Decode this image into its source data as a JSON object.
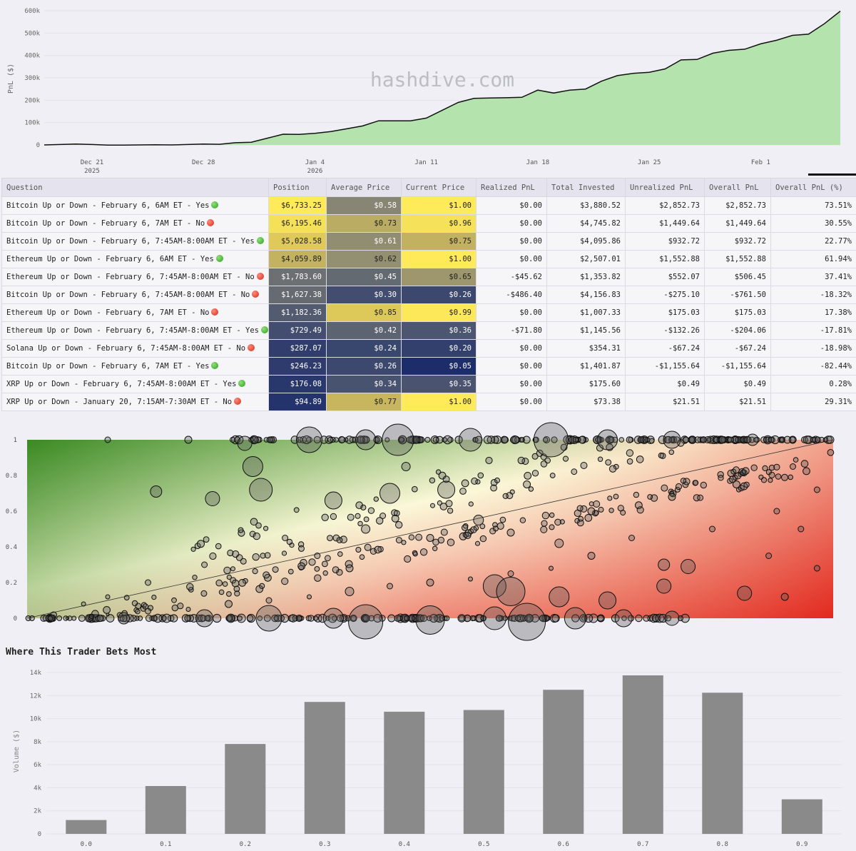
{
  "watermark": "hashdive.com",
  "pnl_chart": {
    "ylabel": "PnL ($)",
    "y_ticks": [
      "0",
      "100k",
      "200k",
      "300k",
      "400k",
      "500k",
      "600k"
    ],
    "x_ticks": [
      {
        "label": "Dec 21",
        "sub": "2025"
      },
      {
        "label": "Dec 28",
        "sub": ""
      },
      {
        "label": "Jan 4",
        "sub": "2026"
      },
      {
        "label": "Jan 11",
        "sub": ""
      },
      {
        "label": "Jan 18",
        "sub": ""
      },
      {
        "label": "Jan 25",
        "sub": ""
      },
      {
        "label": "Feb 1",
        "sub": ""
      }
    ],
    "colors": {
      "fill": "#b5e3ae",
      "line": "#111111"
    }
  },
  "chart_data": [
    {
      "type": "area",
      "ylabel": "PnL ($)",
      "ylim": [
        0,
        600000
      ],
      "x": [
        "2025-12-18",
        "2025-12-19",
        "2025-12-20",
        "2025-12-21",
        "2025-12-22",
        "2025-12-23",
        "2025-12-24",
        "2025-12-25",
        "2025-12-26",
        "2025-12-27",
        "2025-12-28",
        "2025-12-29",
        "2025-12-30",
        "2025-12-31",
        "2026-01-01",
        "2026-01-02",
        "2026-01-03",
        "2026-01-04",
        "2026-01-05",
        "2026-01-06",
        "2026-01-07",
        "2026-01-08",
        "2026-01-09",
        "2026-01-10",
        "2026-01-11",
        "2026-01-12",
        "2026-01-13",
        "2026-01-14",
        "2026-01-15",
        "2026-01-16",
        "2026-01-17",
        "2026-01-18",
        "2026-01-19",
        "2026-01-20",
        "2026-01-21",
        "2026-01-22",
        "2026-01-23",
        "2026-01-24",
        "2026-01-25",
        "2026-01-26",
        "2026-01-27",
        "2026-01-28",
        "2026-01-29",
        "2026-01-30",
        "2026-01-31",
        "2026-02-01",
        "2026-02-02",
        "2026-02-03",
        "2026-02-04",
        "2026-02-05",
        "2026-02-06"
      ],
      "series": [
        {
          "values": [
            0,
            2000,
            4000,
            2000,
            -1000,
            -1000,
            0,
            1000,
            0,
            2000,
            4000,
            3000,
            10000,
            12000,
            30000,
            48000,
            47000,
            52000,
            60000,
            72000,
            85000,
            108000,
            108000,
            108000,
            120000,
            155000,
            190000,
            208000,
            210000,
            211000,
            213000,
            245000,
            232000,
            245000,
            250000,
            285000,
            310000,
            320000,
            325000,
            340000,
            380000,
            382000,
            410000,
            423000,
            428000,
            452000,
            468000,
            490000,
            495000,
            542000,
            598000
          ]
        }
      ]
    },
    {
      "type": "table",
      "columns": [
        "Question",
        "Position",
        "Average Price",
        "Current Price",
        "Realized PnL",
        "Total Invested",
        "Unrealized PnL",
        "Overall PnL",
        "Overall PnL (%)"
      ],
      "rows": [
        {
          "question": "Bitcoin Up or Down - February 6, 6AM ET - Yes",
          "outcome": "yes",
          "position": "$6,733.25",
          "avg_price": "$0.58",
          "current_price": "$1.00",
          "realized": "$0.00",
          "invested": "$3,880.52",
          "unrealized": "$2,852.73",
          "overall": "$2,852.73",
          "overall_pct": "73.51%",
          "position_value": 6733.25,
          "avg_value": 0.58,
          "cur_value": 1.0
        },
        {
          "question": "Bitcoin Up or Down - February 6, 7AM ET - No",
          "outcome": "no",
          "position": "$6,195.46",
          "avg_price": "$0.73",
          "current_price": "$0.96",
          "realized": "$0.00",
          "invested": "$4,745.82",
          "unrealized": "$1,449.64",
          "overall": "$1,449.64",
          "overall_pct": "30.55%",
          "position_value": 6195.46,
          "avg_value": 0.73,
          "cur_value": 0.96
        },
        {
          "question": "Bitcoin Up or Down - February 6, 7:45AM-8:00AM ET - Yes",
          "outcome": "yes",
          "position": "$5,028.58",
          "avg_price": "$0.61",
          "current_price": "$0.75",
          "realized": "$0.00",
          "invested": "$4,095.86",
          "unrealized": "$932.72",
          "overall": "$932.72",
          "overall_pct": "22.77%",
          "position_value": 5028.58,
          "avg_value": 0.61,
          "cur_value": 0.75
        },
        {
          "question": "Ethereum Up or Down - February 6, 6AM ET - Yes",
          "outcome": "yes",
          "position": "$4,059.89",
          "avg_price": "$0.62",
          "current_price": "$1.00",
          "realized": "$0.00",
          "invested": "$2,507.01",
          "unrealized": "$1,552.88",
          "overall": "$1,552.88",
          "overall_pct": "61.94%",
          "position_value": 4059.89,
          "avg_value": 0.62,
          "cur_value": 1.0
        },
        {
          "question": "Ethereum Up or Down - February 6, 7:45AM-8:00AM ET - No",
          "outcome": "no",
          "position": "$1,783.60",
          "avg_price": "$0.45",
          "current_price": "$0.65",
          "realized": "-$45.62",
          "invested": "$1,353.82",
          "unrealized": "$552.07",
          "overall": "$506.45",
          "overall_pct": "37.41%",
          "position_value": 1783.6,
          "avg_value": 0.45,
          "cur_value": 0.65
        },
        {
          "question": "Bitcoin Up or Down - February 6, 7:45AM-8:00AM ET - No",
          "outcome": "no",
          "position": "$1,627.38",
          "avg_price": "$0.30",
          "current_price": "$0.26",
          "realized": "-$486.40",
          "invested": "$4,156.83",
          "unrealized": "-$275.10",
          "overall": "-$761.50",
          "overall_pct": "-18.32%",
          "position_value": 1627.38,
          "avg_value": 0.3,
          "cur_value": 0.26
        },
        {
          "question": "Ethereum Up or Down - February 6, 7AM ET - No",
          "outcome": "no",
          "position": "$1,182.36",
          "avg_price": "$0.85",
          "current_price": "$0.99",
          "realized": "$0.00",
          "invested": "$1,007.33",
          "unrealized": "$175.03",
          "overall": "$175.03",
          "overall_pct": "17.38%",
          "position_value": 1182.36,
          "avg_value": 0.85,
          "cur_value": 0.99
        },
        {
          "question": "Ethereum Up or Down - February 6, 7:45AM-8:00AM ET - Yes",
          "outcome": "yes",
          "position": "$729.49",
          "avg_price": "$0.42",
          "current_price": "$0.36",
          "realized": "-$71.80",
          "invested": "$1,145.56",
          "unrealized": "-$132.26",
          "overall": "-$204.06",
          "overall_pct": "-17.81%",
          "position_value": 729.49,
          "avg_value": 0.42,
          "cur_value": 0.36
        },
        {
          "question": "Solana Up or Down - February 6, 7:45AM-8:00AM ET - No",
          "outcome": "no",
          "position": "$287.07",
          "avg_price": "$0.24",
          "current_price": "$0.20",
          "realized": "$0.00",
          "invested": "$354.31",
          "unrealized": "-$67.24",
          "overall": "-$67.24",
          "overall_pct": "-18.98%",
          "position_value": 287.07,
          "avg_value": 0.24,
          "cur_value": 0.2
        },
        {
          "question": "Bitcoin Up or Down - February 6, 7AM ET - Yes",
          "outcome": "yes",
          "position": "$246.23",
          "avg_price": "$0.26",
          "current_price": "$0.05",
          "realized": "$0.00",
          "invested": "$1,401.87",
          "unrealized": "-$1,155.64",
          "overall": "-$1,155.64",
          "overall_pct": "-82.44%",
          "position_value": 246.23,
          "avg_value": 0.26,
          "cur_value": 0.05
        },
        {
          "question": "XRP Up or Down - February 6, 7:45AM-8:00AM ET - Yes",
          "outcome": "yes",
          "position": "$176.08",
          "avg_price": "$0.34",
          "current_price": "$0.35",
          "realized": "$0.00",
          "invested": "$175.60",
          "unrealized": "$0.49",
          "overall": "$0.49",
          "overall_pct": "0.28%",
          "position_value": 176.08,
          "avg_value": 0.34,
          "cur_value": 0.35
        },
        {
          "question": "XRP Up or Down - January 20, 7:15AM-7:30AM ET - No",
          "outcome": "no",
          "position": "$94.89",
          "avg_price": "$0.77",
          "current_price": "$1.00",
          "realized": "$0.00",
          "invested": "$73.38",
          "unrealized": "$21.51",
          "overall": "$21.51",
          "overall_pct": "29.31%",
          "position_value": 94.89,
          "avg_value": 0.77,
          "cur_value": 1.0
        }
      ]
    },
    {
      "type": "scatter",
      "xlim": [
        0,
        1
      ],
      "ylim": [
        0,
        1
      ],
      "y_ticks": [
        "0",
        "0.2",
        "0.4",
        "0.6",
        "0.8",
        "1"
      ],
      "diagonal": true,
      "gradient_colors": {
        "green": "#3a8a22",
        "cream": "#fbf8d8",
        "red": "#e2291e"
      },
      "points": [
        {
          "x": 0.05,
          "y": 0.0,
          "s": 2
        },
        {
          "x": 0.08,
          "y": 0.01,
          "s": 3
        },
        {
          "x": 0.1,
          "y": 0.02,
          "s": 2
        },
        {
          "x": 0.15,
          "y": 0.04,
          "s": 4
        },
        {
          "x": 0.2,
          "y": 0.05,
          "s": 3
        },
        {
          "x": 0.25,
          "y": 0.08,
          "s": 5
        },
        {
          "x": 0.3,
          "y": 0.1,
          "s": 4
        },
        {
          "x": 0.35,
          "y": 0.12,
          "s": 3
        },
        {
          "x": 0.4,
          "y": 0.15,
          "s": 6
        },
        {
          "x": 0.45,
          "y": 0.18,
          "s": 4
        },
        {
          "x": 0.5,
          "y": 0.2,
          "s": 5
        },
        {
          "x": 0.55,
          "y": 0.22,
          "s": 3
        },
        {
          "x": 0.6,
          "y": 0.25,
          "s": 4
        },
        {
          "x": 0.65,
          "y": 0.28,
          "s": 3
        },
        {
          "x": 0.12,
          "y": 0.0,
          "s": 8
        },
        {
          "x": 0.22,
          "y": 0.0,
          "s": 12
        },
        {
          "x": 0.3,
          "y": 0.0,
          "s": 18
        },
        {
          "x": 0.38,
          "y": 0.0,
          "s": 14
        },
        {
          "x": 0.42,
          "y": -0.02,
          "s": 24
        },
        {
          "x": 0.5,
          "y": -0.01,
          "s": 20
        },
        {
          "x": 0.58,
          "y": 0.0,
          "s": 16
        },
        {
          "x": 0.62,
          "y": -0.02,
          "s": 26
        },
        {
          "x": 0.68,
          "y": 0.0,
          "s": 15
        },
        {
          "x": 0.74,
          "y": 0.0,
          "s": 12
        },
        {
          "x": 0.8,
          "y": 0.0,
          "s": 10
        },
        {
          "x": 0.35,
          "y": 1.0,
          "s": 18
        },
        {
          "x": 0.42,
          "y": 1.0,
          "s": 14
        },
        {
          "x": 0.46,
          "y": 1.0,
          "s": 22
        },
        {
          "x": 0.55,
          "y": 1.0,
          "s": 16
        },
        {
          "x": 0.65,
          "y": 1.0,
          "s": 24
        },
        {
          "x": 0.72,
          "y": 1.0,
          "s": 14
        },
        {
          "x": 0.8,
          "y": 1.0,
          "s": 12
        },
        {
          "x": 0.9,
          "y": 1.0,
          "s": 8
        },
        {
          "x": 0.27,
          "y": 0.98,
          "s": 10
        },
        {
          "x": 0.1,
          "y": 1.0,
          "s": 4
        },
        {
          "x": 0.2,
          "y": 1.0,
          "s": 5
        },
        {
          "x": 0.28,
          "y": 0.85,
          "s": 14
        },
        {
          "x": 0.29,
          "y": 0.72,
          "s": 16
        },
        {
          "x": 0.16,
          "y": 0.71,
          "s": 8
        },
        {
          "x": 0.23,
          "y": 0.67,
          "s": 10
        },
        {
          "x": 0.38,
          "y": 0.66,
          "s": 12
        },
        {
          "x": 0.45,
          "y": 0.7,
          "s": 14
        },
        {
          "x": 0.52,
          "y": 0.72,
          "s": 12
        },
        {
          "x": 0.42,
          "y": 0.5,
          "s": 6
        },
        {
          "x": 0.5,
          "y": 0.45,
          "s": 5
        },
        {
          "x": 0.56,
          "y": 0.55,
          "s": 7
        },
        {
          "x": 0.6,
          "y": 0.48,
          "s": 5
        },
        {
          "x": 0.66,
          "y": 0.42,
          "s": 6
        },
        {
          "x": 0.7,
          "y": 0.35,
          "s": 5
        },
        {
          "x": 0.75,
          "y": 0.45,
          "s": 4
        },
        {
          "x": 0.79,
          "y": 0.3,
          "s": 8
        },
        {
          "x": 0.82,
          "y": 0.29,
          "s": 10
        },
        {
          "x": 0.58,
          "y": 0.18,
          "s": 16
        },
        {
          "x": 0.6,
          "y": 0.15,
          "s": 20
        },
        {
          "x": 0.66,
          "y": 0.12,
          "s": 14
        },
        {
          "x": 0.72,
          "y": 0.1,
          "s": 12
        },
        {
          "x": 0.79,
          "y": 0.18,
          "s": 10
        },
        {
          "x": 0.89,
          "y": 0.14,
          "s": 10
        },
        {
          "x": 0.94,
          "y": 0.12,
          "s": 5
        },
        {
          "x": 0.98,
          "y": 0.28,
          "s": 4
        },
        {
          "x": 0.92,
          "y": 0.35,
          "s": 4
        },
        {
          "x": 0.85,
          "y": 0.5,
          "s": 4
        },
        {
          "x": 0.93,
          "y": 0.6,
          "s": 4
        },
        {
          "x": 0.96,
          "y": 0.5,
          "s": 4
        },
        {
          "x": 0.98,
          "y": 0.72,
          "s": 4
        },
        {
          "x": 0.95,
          "y": 0.85,
          "s": 4
        },
        {
          "x": 0.88,
          "y": 0.75,
          "s": 5
        },
        {
          "x": 0.8,
          "y": 0.68,
          "s": 5
        },
        {
          "x": 0.7,
          "y": 0.6,
          "s": 5
        },
        {
          "x": 0.62,
          "y": 0.75,
          "s": 5
        },
        {
          "x": 0.47,
          "y": 0.85,
          "s": 6
        },
        {
          "x": 0.32,
          "y": 0.45,
          "s": 4
        },
        {
          "x": 0.22,
          "y": 0.3,
          "s": 4
        },
        {
          "x": 0.15,
          "y": 0.2,
          "s": 4
        },
        {
          "x": 0.1,
          "y": 0.12,
          "s": 3
        },
        {
          "x": 0.07,
          "y": 0.08,
          "s": 3
        },
        {
          "x": 0.36,
          "y": 0.35,
          "s": 4
        },
        {
          "x": 0.4,
          "y": 0.28,
          "s": 5
        }
      ]
    },
    {
      "type": "bar",
      "title": "Where This Trader Bets Most",
      "ylabel": "Volume ($)",
      "ylim": [
        0,
        14000
      ],
      "y_ticks": [
        "0",
        "2k",
        "4k",
        "6k",
        "8k",
        "10k",
        "12k",
        "14k"
      ],
      "categories": [
        "0.0",
        "0.1",
        "0.2",
        "0.3",
        "0.4",
        "0.5",
        "0.6",
        "0.7",
        "0.8",
        "0.9"
      ],
      "values": [
        1200,
        4150,
        7800,
        11450,
        10600,
        10750,
        12500,
        13750,
        12250,
        3000
      ],
      "colors": {
        "bar": "#8a8a8a"
      }
    }
  ]
}
